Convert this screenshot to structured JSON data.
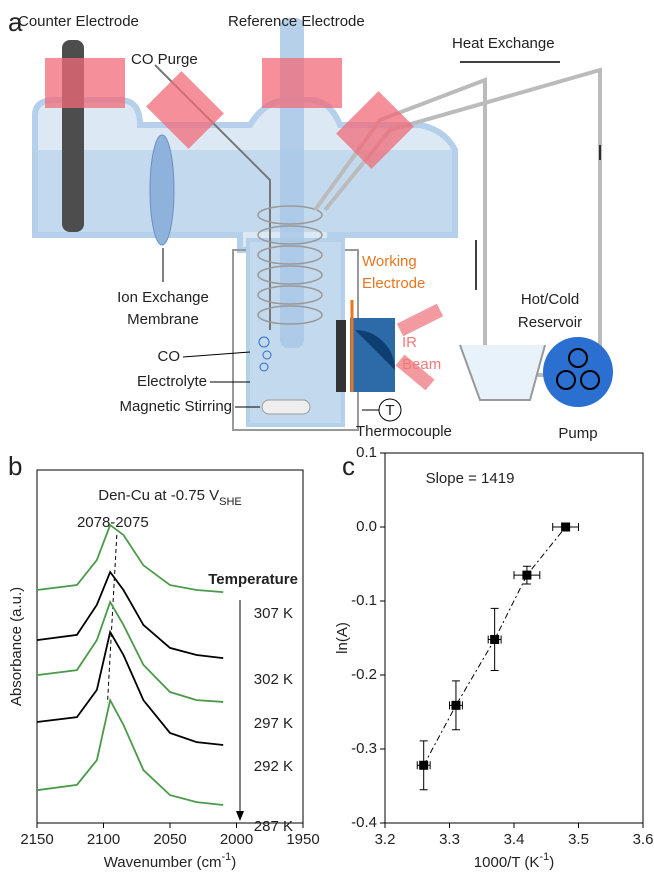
{
  "panels": {
    "a": "a",
    "b": "b",
    "c": "c"
  },
  "diagram": {
    "counter": "Counter Electrode",
    "purge": "CO Purge",
    "reference": "Reference Electrode",
    "heat": "Heat Exchange",
    "working": [
      "Working",
      "Electrode"
    ],
    "ir": [
      "IR",
      "Beam"
    ],
    "reservoir": [
      "Hot/Cold",
      "Reservoir"
    ],
    "membrane": [
      "Ion Exchange",
      "Membrane"
    ],
    "co": "CO",
    "electrolyte": "Electrolyte",
    "stirring": "Magnetic Stirring",
    "thermocouple": "Thermocouple",
    "thermo_symbol": "T",
    "pump": "Pump"
  },
  "chart_data": [
    {
      "type": "line",
      "title": [
        "Den-Cu at -0.75 V",
        "SHE"
      ],
      "xlabel": [
        "Wavenumber (cm",
        "-1",
        ")"
      ],
      "ylabel": "Absorbance (a.u.)",
      "annotation": "2078-2075",
      "legend_title": "Temperature",
      "xlim": [
        2150,
        1950
      ],
      "xticks": [
        2150,
        2100,
        2050,
        2000,
        1950
      ],
      "ylim": [
        0,
        10
      ],
      "x": [
        2150,
        2120,
        2105,
        2095,
        2085,
        2070,
        2050,
        2030,
        2010
      ],
      "series": [
        {
          "name": "307 K",
          "color": "#4a9a4a",
          "values": [
            6.6,
            6.74,
            7.45,
            8.44,
            8.16,
            7.3,
            6.74,
            6.6,
            6.54
          ]
        },
        {
          "name": "302 K",
          "color": "#000000",
          "values": [
            5.18,
            5.33,
            6.18,
            7.11,
            6.6,
            5.61,
            4.96,
            4.76,
            4.67
          ]
        },
        {
          "name": "297 K",
          "color": "#4a9a4a",
          "values": [
            4.19,
            4.33,
            5.18,
            6.26,
            5.61,
            4.48,
            3.71,
            3.48,
            3.43
          ]
        },
        {
          "name": "292 K",
          "color": "#000000",
          "values": [
            2.86,
            3.0,
            3.77,
            5.41,
            4.76,
            3.48,
            2.55,
            2.29,
            2.21
          ]
        },
        {
          "name": "287 K",
          "color": "#4a9a4a",
          "values": [
            0.93,
            1.08,
            1.78,
            3.48,
            2.78,
            1.5,
            0.79,
            0.59,
            0.51
          ]
        }
      ]
    },
    {
      "type": "scatter",
      "annotation": "Slope = 1419",
      "xlabel": [
        "1000/T (K",
        "-1",
        ")"
      ],
      "ylabel": "ln(A)",
      "xlim": [
        3.2,
        3.6
      ],
      "xticks": [
        3.2,
        3.3,
        3.4,
        3.5,
        3.6
      ],
      "ylim": [
        -0.4,
        0.1
      ],
      "yticks": [
        -0.4,
        -0.3,
        -0.2,
        -0.1,
        {
          "value": 0,
          "label": "0.0"
        },
        0.1
      ],
      "color": "#000000",
      "x": [
        3.26,
        3.31,
        3.37,
        3.42,
        3.48
      ],
      "xerr": [
        0.01,
        0.01,
        0.01,
        0.02,
        0.02
      ],
      "values": [
        -0.322,
        -0.241,
        -0.152,
        -0.065,
        0.0
      ],
      "yerr": [
        0.033,
        0.033,
        0.042,
        0.012,
        0.003
      ]
    }
  ]
}
